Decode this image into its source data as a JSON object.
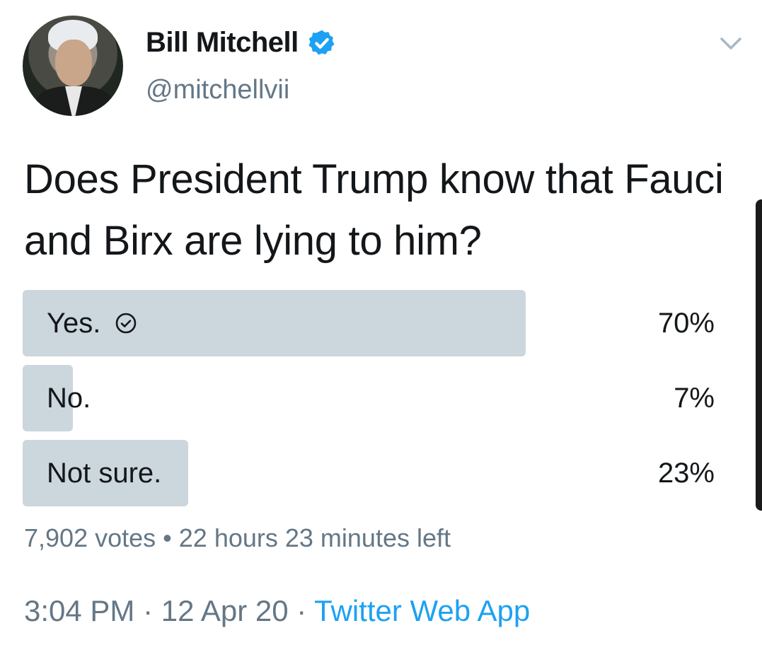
{
  "tweet": {
    "author_name": "Bill Mitchell",
    "author_handle": "@mitchellvii",
    "question": "Does President Trump know that Fauci and Birx are lying to him?"
  },
  "poll": {
    "options": [
      {
        "label": "Yes.",
        "percent_text": "70%",
        "percent": 70,
        "selected": true
      },
      {
        "label": "No.",
        "percent_text": "7%",
        "percent": 7,
        "selected": false
      },
      {
        "label": "Not sure.",
        "percent_text": "23%",
        "percent": 23,
        "selected": false
      }
    ],
    "votes": "7,902 votes",
    "separator": "•",
    "time_left": "22 hours 23 minutes left"
  },
  "footer": {
    "time": "3:04 PM",
    "sep1": "·",
    "date": "12 Apr 20",
    "sep2": "·",
    "source": "Twitter Web App"
  },
  "colors": {
    "bar": "#ccd6dd",
    "accent": "#1da1f2",
    "muted": "#657786",
    "text": "#14171a"
  },
  "icons": {
    "verified": "verified-badge-icon",
    "caret": "chevron-down-icon",
    "check": "check-circle-icon"
  }
}
